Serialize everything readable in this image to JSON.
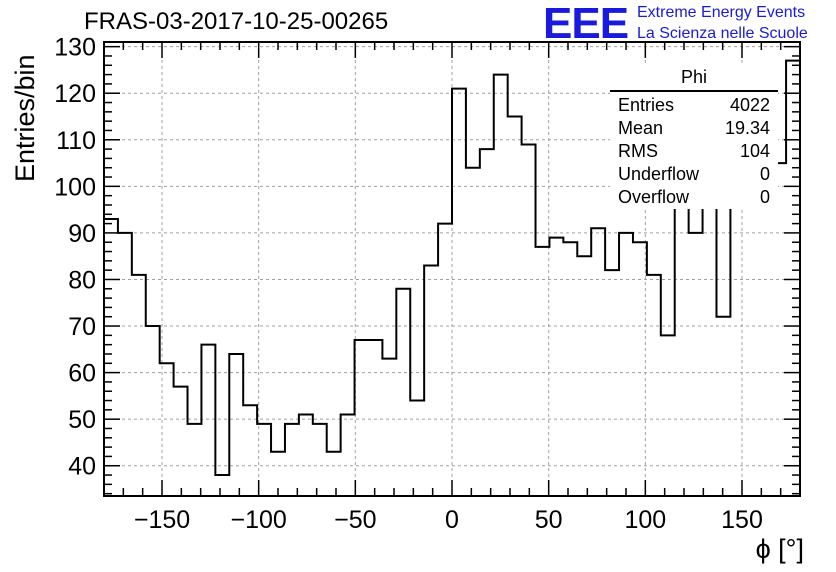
{
  "title": "FRAS-03-2017-10-25-00265",
  "logo": {
    "mark": "EEE",
    "line1": "Extreme Energy Events",
    "line2": "La Scienza nelle Scuole",
    "color": "#1a1adc"
  },
  "stats": {
    "name": "Phi",
    "rows": [
      {
        "label": "Entries",
        "value": "4022"
      },
      {
        "label": "Mean",
        "value": "19.34"
      },
      {
        "label": "RMS",
        "value": "104"
      },
      {
        "label": "Underflow",
        "value": "0"
      },
      {
        "label": "Overflow",
        "value": "0"
      }
    ]
  },
  "chart_data": {
    "type": "histogram",
    "title": "FRAS-03-2017-10-25-00265",
    "xlabel": "ϕ [°]",
    "ylabel": "Entries/bin",
    "xlim": [
      -180,
      180
    ],
    "ylim": [
      33.5,
      131
    ],
    "bin_width": 7.2,
    "x_ticks": [
      -150,
      -100,
      -50,
      0,
      50,
      100,
      150
    ],
    "y_ticks": [
      40,
      50,
      60,
      70,
      80,
      90,
      100,
      110,
      120,
      130
    ],
    "grid": true,
    "values": [
      93,
      90,
      81,
      70,
      62,
      57,
      49,
      66,
      38,
      64,
      53,
      49,
      43,
      49,
      51,
      49,
      43,
      51,
      67,
      67,
      63,
      78,
      54,
      83,
      92,
      121,
      104,
      108,
      124,
      115,
      109,
      87,
      89,
      88,
      85,
      91,
      82,
      90,
      88,
      81,
      68,
      102,
      90,
      115,
      72,
      96,
      111,
      112,
      105,
      127
    ]
  }
}
